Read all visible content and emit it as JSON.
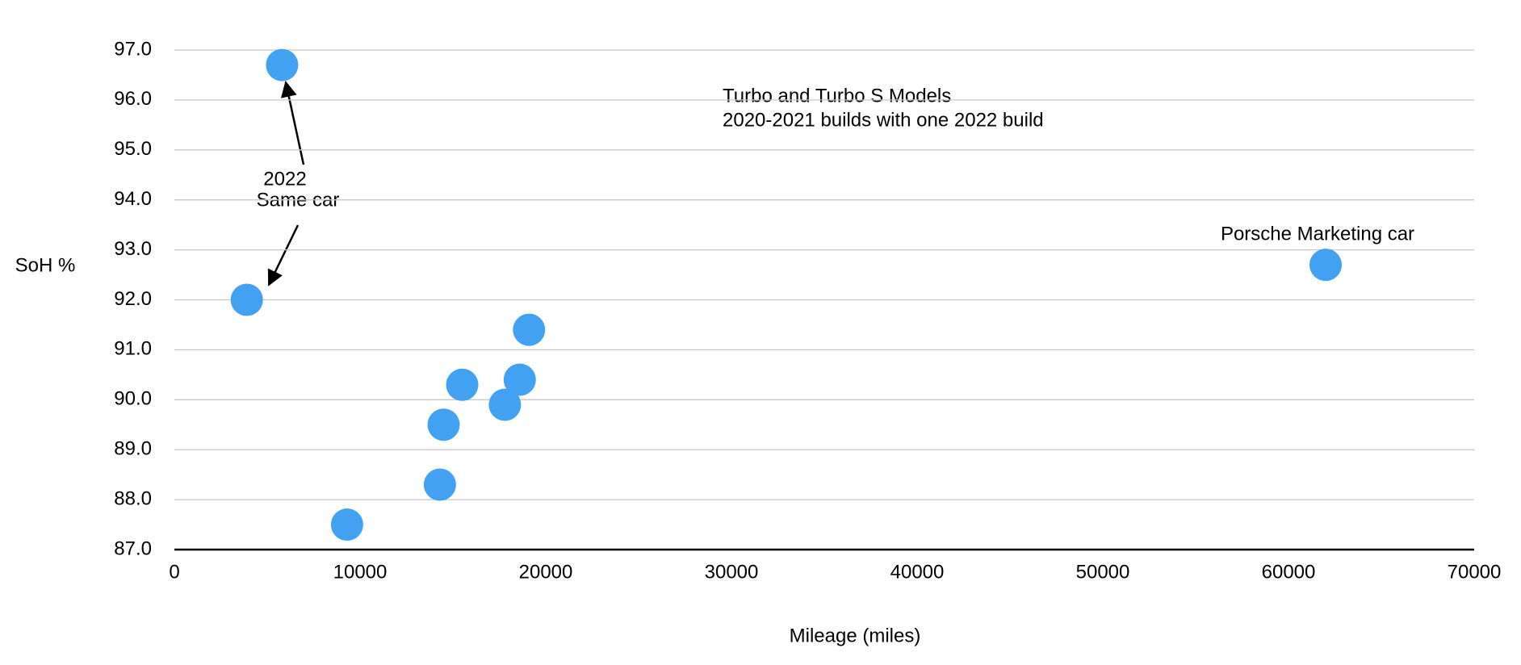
{
  "chart_data": {
    "type": "scatter",
    "x_label": "Mileage (miles)",
    "y_label": "SoH %",
    "annotations": [
      "Turbo and Turbo S Models",
      "2020-2021 builds with one 2022 build",
      "2022",
      "Same car",
      "Porsche Marketing car"
    ],
    "series": [
      {
        "color": "#42a1f0",
        "x": [
          5800,
          3900,
          9300,
          14300,
          14500,
          15500,
          17800,
          18600,
          19100,
          62000
        ],
        "values": [
          96.7,
          92.0,
          87.5,
          88.3,
          89.5,
          90.3,
          89.9,
          90.4,
          91.4,
          92.7
        ]
      }
    ],
    "xlim": [
      0,
      70000
    ],
    "xticks": [
      0,
      10000,
      20000,
      30000,
      40000,
      50000,
      60000,
      70000
    ],
    "ylim": [
      87,
      97
    ],
    "yticks": [
      {
        "value": 87,
        "label": "87.0"
      },
      {
        "value": 88,
        "label": "88.0"
      },
      {
        "value": 89,
        "label": "89.0"
      },
      {
        "value": 90,
        "label": "90.0"
      },
      {
        "value": 91,
        "label": "91.0"
      },
      {
        "value": 92,
        "label": "92.0"
      },
      {
        "value": 93,
        "label": "93.0"
      },
      {
        "value": 94,
        "label": "94.0"
      },
      {
        "value": 95,
        "label": "95.0"
      },
      {
        "value": 96,
        "label": "96.0"
      },
      {
        "value": 97,
        "label": "97.0"
      }
    ],
    "grid": true
  }
}
